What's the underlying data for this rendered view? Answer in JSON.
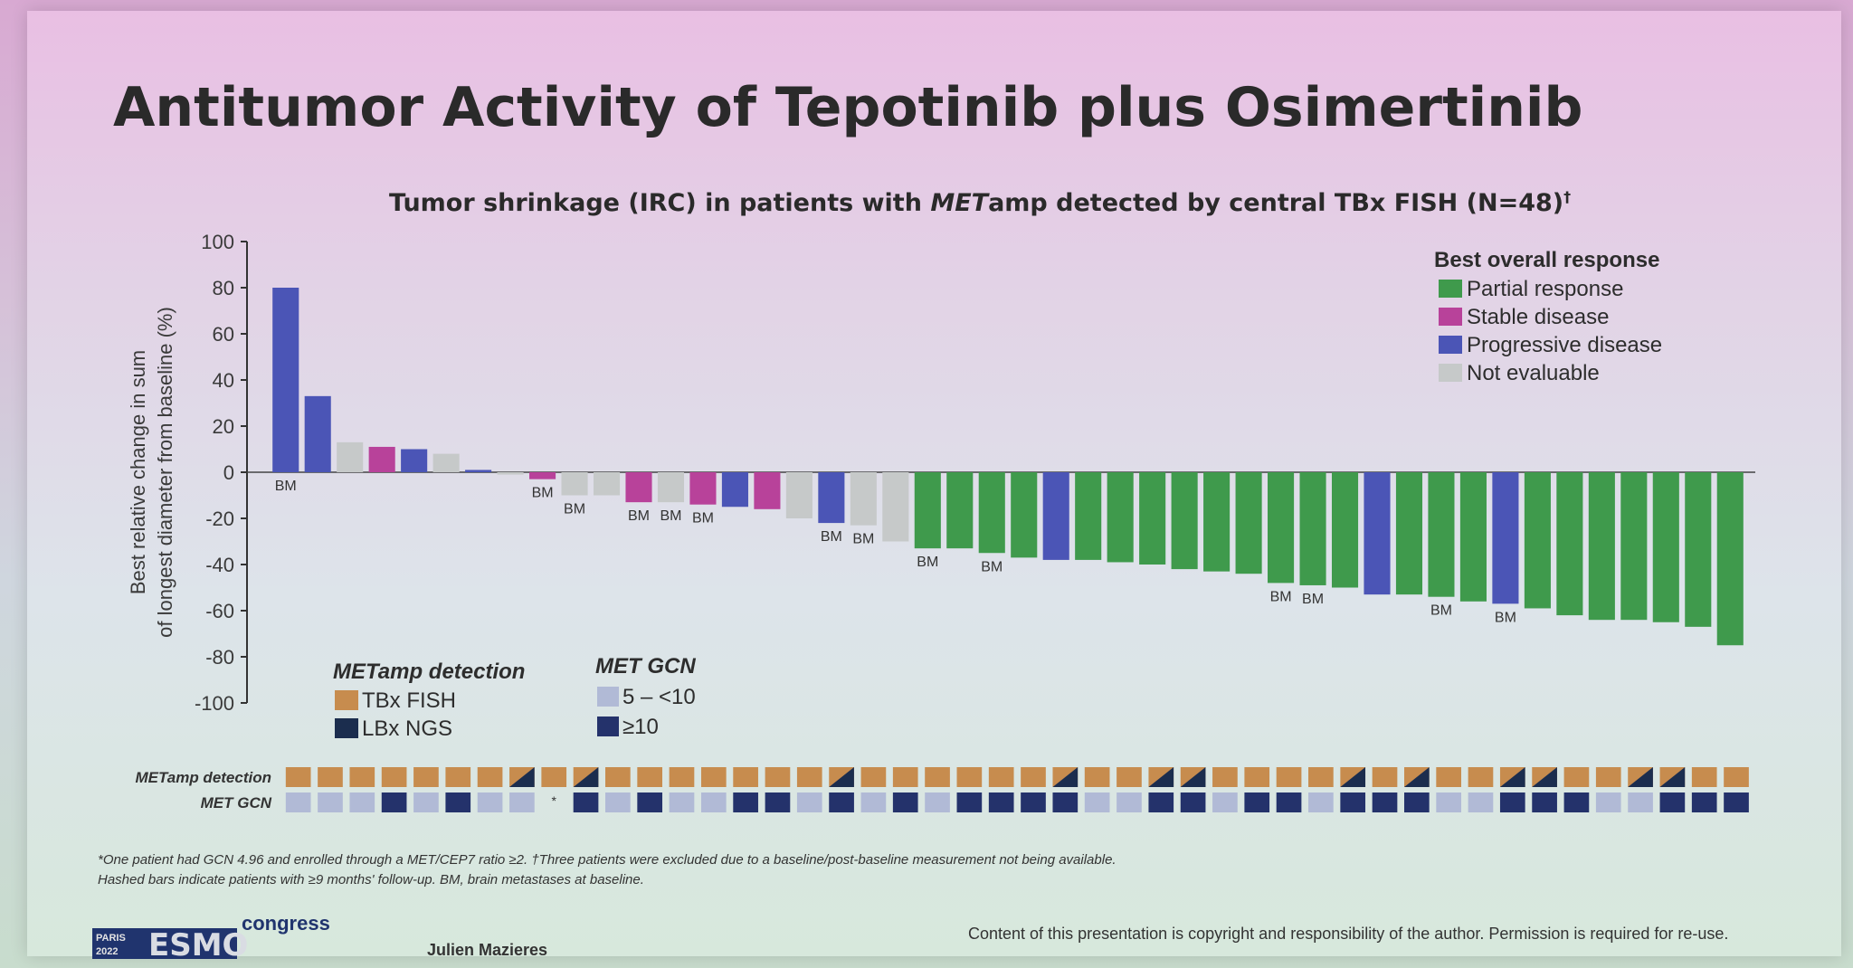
{
  "slide": {
    "title": "Antitumor Activity of Tepotinib plus Osimertinib",
    "subtitle_italic": "MET",
    "subtitle_prefix": "Tumor shrinkage (IRC) in patients with ",
    "subtitle_suffix": "amp detected by central TBx FISH (N=48)",
    "subtitle_sup": "†",
    "footnote_1": "*One patient had GCN 4.96 and enrolled through a MET/CEP7 ratio ≥2. †Three patients were excluded due to a baseline/post-baseline measurement not being available.",
    "footnote_2": "Hashed bars indicate patients with ≥9 months' follow-up. BM, brain metastases at baseline.",
    "author": "Julien Mazieres",
    "copyright": "Content of this presentation is copyright and responsibility of the author. Permission is required for re-use.",
    "logo_city": "PARIS",
    "logo_year": "2022",
    "logo_brand": "ESMO",
    "logo_congress": "congress"
  },
  "colors": {
    "partial_response": "#3f9a4c",
    "stable_disease": "#b8429a",
    "progressive_disease": "#4b55b6",
    "not_evaluable": "#c6c9c9",
    "tbx_fish": "#c78c4e",
    "lbx_ngs": "#1b2d4e",
    "gcn_low": "#b1bad6",
    "gcn_high": "#24326b"
  },
  "chart_data": {
    "type": "bar",
    "title": "Tumor shrinkage (IRC) in patients with METamp detected by central TBx FISH (N=48)†",
    "ylabel": "Best relative change in sum of longest diameter from baseline (%)",
    "ylim": [
      -100,
      100
    ],
    "yticks": [
      100,
      80,
      60,
      40,
      20,
      0,
      -20,
      -40,
      -60,
      -80,
      -100
    ],
    "legend_title": "Best overall response",
    "legend": [
      {
        "key": "PR",
        "label": "Partial response"
      },
      {
        "key": "SD",
        "label": "Stable disease"
      },
      {
        "key": "PD",
        "label": "Progressive disease"
      },
      {
        "key": "NE",
        "label": "Not evaluable"
      }
    ],
    "detection_legend_title": "METamp detection",
    "detection_legend": [
      {
        "key": "T",
        "label": "TBx FISH"
      },
      {
        "key": "L",
        "label": "LBx NGS"
      }
    ],
    "gcn_legend_title": "MET GCN",
    "gcn_legend": [
      {
        "key": "lo",
        "label": "5 – <10"
      },
      {
        "key": "hi",
        "label": "≥10"
      }
    ],
    "row_labels": [
      "METamp detection",
      "MET GCN"
    ],
    "annotation_text": "BM",
    "patients": [
      {
        "value": 80,
        "response": "PD",
        "bm": true,
        "detection": "T",
        "gcn": "lo"
      },
      {
        "value": 33,
        "response": "PD",
        "bm": false,
        "detection": "T",
        "gcn": "lo"
      },
      {
        "value": 13,
        "response": "NE",
        "bm": false,
        "detection": "T",
        "gcn": "lo"
      },
      {
        "value": 11,
        "response": "SD",
        "bm": false,
        "detection": "T",
        "gcn": "hi"
      },
      {
        "value": 10,
        "response": "PD",
        "bm": false,
        "detection": "T",
        "gcn": "lo"
      },
      {
        "value": 8,
        "response": "NE",
        "bm": false,
        "detection": "T",
        "gcn": "hi"
      },
      {
        "value": 1,
        "response": "PD",
        "bm": false,
        "detection": "T",
        "gcn": "lo"
      },
      {
        "value": -1,
        "response": "NE",
        "bm": false,
        "detection": "TL",
        "gcn": "lo"
      },
      {
        "value": -3,
        "response": "SD",
        "bm": true,
        "detection": "T",
        "gcn": "*"
      },
      {
        "value": -10,
        "response": "NE",
        "bm": true,
        "detection": "TL",
        "gcn": "hi"
      },
      {
        "value": -10,
        "response": "NE",
        "bm": false,
        "detection": "T",
        "gcn": "lo"
      },
      {
        "value": -13,
        "response": "SD",
        "bm": true,
        "detection": "T",
        "gcn": "hi"
      },
      {
        "value": -13,
        "response": "NE",
        "bm": true,
        "detection": "T",
        "gcn": "lo"
      },
      {
        "value": -14,
        "response": "SD",
        "bm": true,
        "detection": "T",
        "gcn": "lo"
      },
      {
        "value": -15,
        "response": "PD",
        "bm": false,
        "detection": "T",
        "gcn": "hi"
      },
      {
        "value": -16,
        "response": "SD",
        "bm": false,
        "detection": "T",
        "gcn": "hi"
      },
      {
        "value": -20,
        "response": "NE",
        "bm": false,
        "detection": "T",
        "gcn": "lo"
      },
      {
        "value": -22,
        "response": "PD",
        "bm": true,
        "detection": "TL",
        "gcn": "hi"
      },
      {
        "value": -23,
        "response": "NE",
        "bm": true,
        "detection": "T",
        "gcn": "lo"
      },
      {
        "value": -30,
        "response": "NE",
        "bm": false,
        "detection": "T",
        "gcn": "hi"
      },
      {
        "value": -33,
        "response": "PR",
        "bm": true,
        "detection": "T",
        "gcn": "lo"
      },
      {
        "value": -33,
        "response": "PR",
        "bm": false,
        "detection": "T",
        "gcn": "hi"
      },
      {
        "value": -35,
        "response": "PR",
        "bm": true,
        "detection": "T",
        "gcn": "hi"
      },
      {
        "value": -37,
        "response": "PR",
        "bm": false,
        "detection": "T",
        "gcn": "hi"
      },
      {
        "value": -38,
        "response": "PD",
        "bm": false,
        "detection": "TL",
        "gcn": "hi"
      },
      {
        "value": -38,
        "response": "PR",
        "bm": false,
        "detection": "T",
        "gcn": "lo"
      },
      {
        "value": -39,
        "response": "PR",
        "bm": false,
        "detection": "T",
        "gcn": "lo"
      },
      {
        "value": -40,
        "response": "PR",
        "bm": false,
        "detection": "TL",
        "gcn": "hi"
      },
      {
        "value": -42,
        "response": "PR",
        "bm": false,
        "detection": "TL",
        "gcn": "hi"
      },
      {
        "value": -43,
        "response": "PR",
        "bm": false,
        "detection": "T",
        "gcn": "lo"
      },
      {
        "value": -44,
        "response": "PR",
        "bm": false,
        "detection": "T",
        "gcn": "hi"
      },
      {
        "value": -48,
        "response": "PR",
        "bm": true,
        "detection": "T",
        "gcn": "hi"
      },
      {
        "value": -49,
        "response": "PR",
        "bm": true,
        "detection": "T",
        "gcn": "lo"
      },
      {
        "value": -50,
        "response": "PR",
        "bm": false,
        "detection": "TL",
        "gcn": "hi"
      },
      {
        "value": -53,
        "response": "PD",
        "bm": false,
        "detection": "T",
        "gcn": "hi"
      },
      {
        "value": -53,
        "response": "PR",
        "bm": false,
        "detection": "TL",
        "gcn": "hi"
      },
      {
        "value": -54,
        "response": "PR",
        "bm": true,
        "detection": "T",
        "gcn": "lo"
      },
      {
        "value": -56,
        "response": "PR",
        "bm": false,
        "detection": "T",
        "gcn": "lo"
      },
      {
        "value": -57,
        "response": "PD",
        "bm": true,
        "detection": "TL",
        "gcn": "hi"
      },
      {
        "value": -59,
        "response": "PR",
        "bm": false,
        "detection": "TL",
        "gcn": "hi"
      },
      {
        "value": -62,
        "response": "PR",
        "bm": false,
        "detection": "T",
        "gcn": "hi"
      },
      {
        "value": -64,
        "response": "PR",
        "bm": false,
        "detection": "T",
        "gcn": "lo"
      },
      {
        "value": -64,
        "response": "PR",
        "bm": false,
        "detection": "TL",
        "gcn": "lo"
      },
      {
        "value": -65,
        "response": "PR",
        "bm": false,
        "detection": "TL",
        "gcn": "hi"
      },
      {
        "value": -67,
        "response": "PR",
        "bm": false,
        "detection": "T",
        "gcn": "hi"
      },
      {
        "value": -75,
        "response": "PR",
        "bm": false,
        "detection": "T",
        "gcn": "hi"
      }
    ]
  }
}
